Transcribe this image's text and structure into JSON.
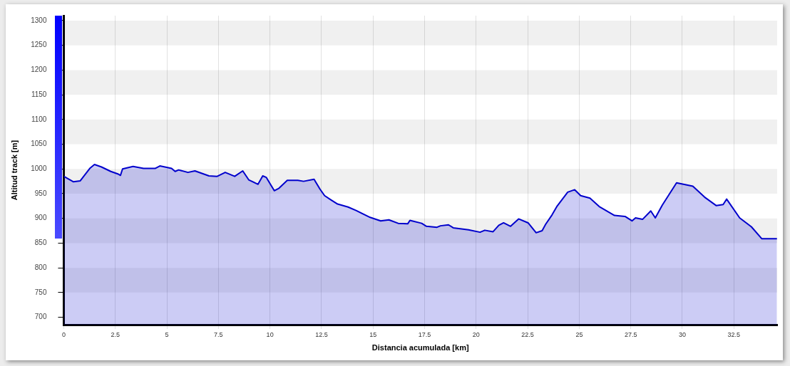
{
  "chart_data": {
    "type": "area",
    "xlabel": "Distancia acumulada [km]",
    "ylabel": "Altitud track [m]",
    "series": [
      {
        "color": "#0000cc",
        "x": [
          0,
          0.47,
          0.8,
          1.26,
          1.49,
          1.83,
          2.28,
          2.62,
          2.75,
          2.85,
          3.36,
          3.87,
          4.43,
          4.66,
          5.23,
          5.4,
          5.57,
          6.02,
          6.36,
          7.04,
          7.44,
          7.83,
          8.29,
          8.68,
          8.97,
          9.42,
          9.65,
          9.82,
          10.21,
          10.44,
          10.84,
          11.35,
          11.63,
          12.14,
          12.43,
          12.65,
          12.94,
          13.28,
          13.79,
          14.18,
          14.86,
          15.37,
          15.77,
          16.22,
          16.68,
          16.79,
          17.36,
          17.59,
          18.1,
          18.27,
          18.66,
          18.89,
          19.63,
          20.19,
          20.42,
          20.82,
          21.1,
          21.33,
          21.67,
          22.06,
          22.52,
          22.91,
          23.2,
          23.37,
          23.68,
          23.93,
          24.44,
          24.78,
          25.07,
          25.52,
          25.97,
          26.71,
          27.22,
          27.56,
          27.73,
          28.07,
          28.47,
          28.69,
          29.03,
          29.72,
          30.51,
          31.08,
          31.64,
          31.98,
          32.15,
          32.78,
          33.35,
          33.85,
          34.59
        ],
        "values": [
          985,
          974,
          976,
          1001,
          1009,
          1004,
          995,
          990,
          987,
          1000,
          1005,
          1001,
          1001,
          1006,
          1001,
          995,
          998,
          993,
          996,
          986,
          985,
          993,
          985,
          996,
          978,
          969,
          986,
          983,
          956,
          961,
          977,
          977,
          975,
          979,
          959,
          946,
          938,
          929,
          923,
          916,
          902,
          895,
          897,
          890,
          889,
          896,
          890,
          884,
          882,
          885,
          887,
          881,
          877,
          872,
          876,
          873,
          886,
          891,
          884,
          899,
          891,
          871,
          875,
          888,
          907,
          925,
          953,
          958,
          946,
          941,
          924,
          906,
          904,
          895,
          901,
          898,
          915,
          901,
          927,
          972,
          965,
          943,
          926,
          928,
          939,
          901,
          883,
          859,
          859
        ]
      }
    ],
    "xlim": [
      0,
      34.6
    ],
    "xticks": [
      0,
      2.5,
      5,
      7.5,
      10,
      12.5,
      15,
      17.5,
      20,
      22.5,
      25,
      27.5,
      30,
      32.5
    ],
    "ylim": [
      685,
      1310
    ],
    "yticks": [
      700,
      750,
      800,
      850,
      900,
      950,
      1000,
      1050,
      1100,
      1150,
      1200,
      1250,
      1300
    ],
    "grid": true,
    "legend": false,
    "marker": "none",
    "line_style": "solid"
  }
}
